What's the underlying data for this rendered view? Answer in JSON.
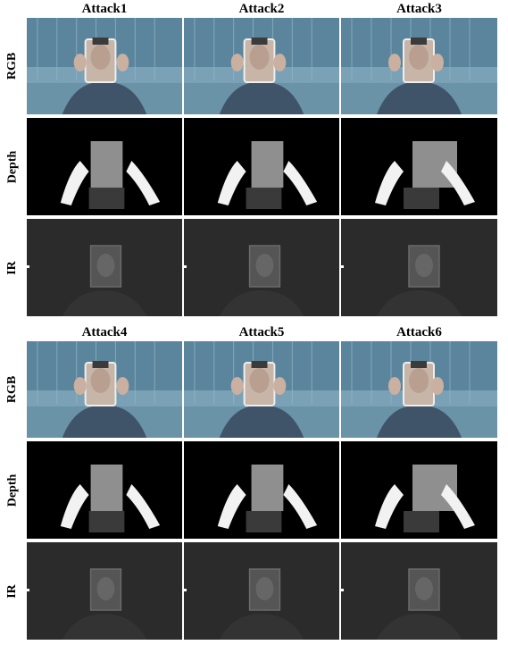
{
  "blocks": [
    {
      "titles": [
        "Attack1",
        "Attack2",
        "Attack3"
      ]
    },
    {
      "titles": [
        "Attack4",
        "Attack5",
        "Attack6"
      ]
    }
  ],
  "rows": [
    {
      "label": "RGB",
      "kind": "rgb"
    },
    {
      "label": "Depth",
      "kind": "depth"
    },
    {
      "label": "IR",
      "kind": "ir"
    }
  ],
  "colors": {
    "rgb_sky": "#6a93a8",
    "rgb_glass": "#4f7a92",
    "rgb_sweater": "#3f5369",
    "rgb_skin": "#c7b5a8",
    "depth_bg": "#000000",
    "depth_mask": "#8f8f8f",
    "depth_hands": "#f2f2f2",
    "ir_bg": "#2b2b2b",
    "ir_face": "#555555"
  }
}
